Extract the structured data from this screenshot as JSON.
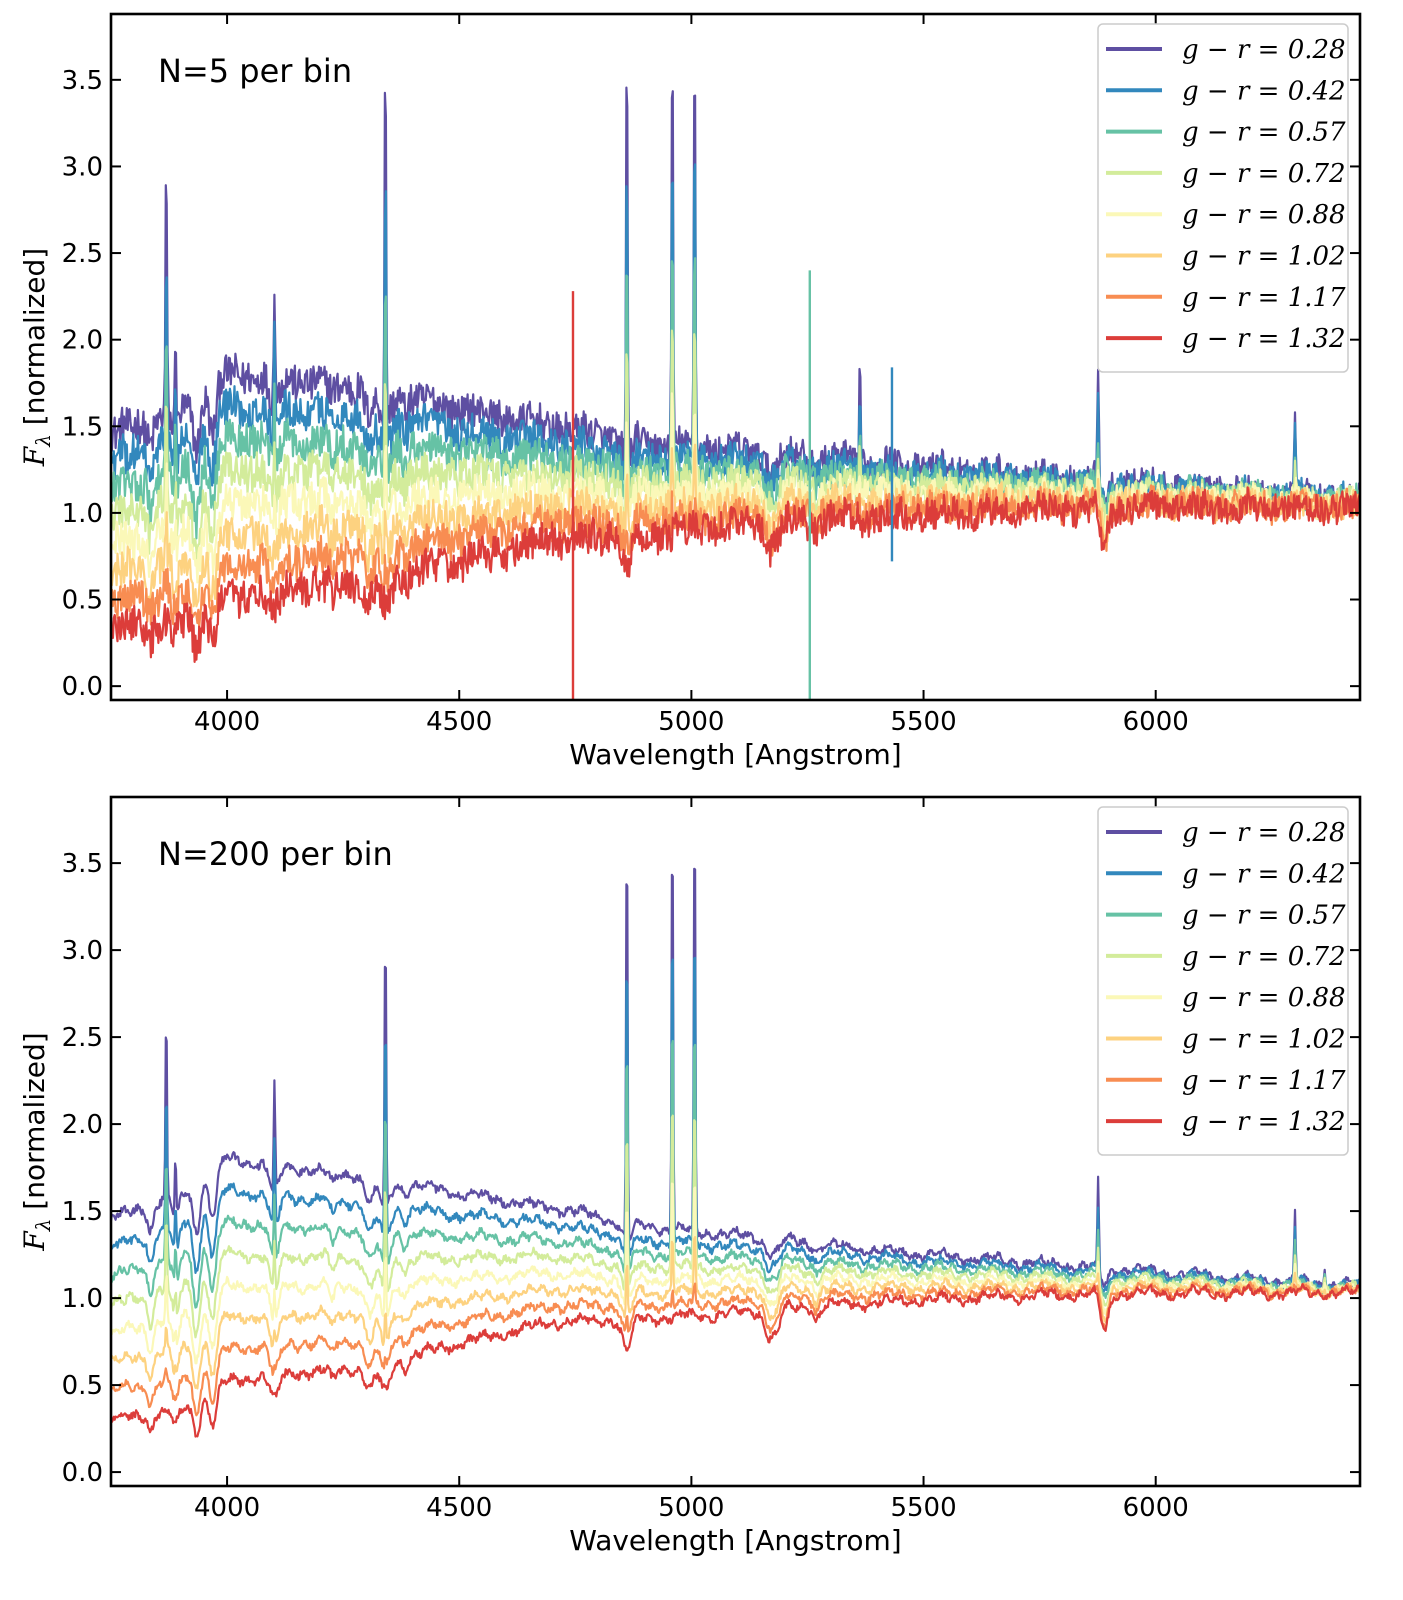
{
  "chart_data": [
    {
      "type": "line",
      "annotation": "N=5 per bin",
      "xlabel": "Wavelength [Angstrom]",
      "ylabel_main": "F",
      "ylabel_sub": "λ",
      "ylabel_rest": " [normalized]",
      "xlim": [
        3750,
        6440
      ],
      "ylim": [
        -0.08,
        3.88
      ],
      "xticks": [
        4000,
        4500,
        5000,
        5500,
        6000
      ],
      "xtick_labels": [
        "4000",
        "4500",
        "5000",
        "5500",
        "6000"
      ],
      "yticks": [
        0.0,
        0.5,
        1.0,
        1.5,
        2.0,
        2.5,
        3.0,
        3.5
      ],
      "ytick_labels": [
        "0.0",
        "0.5",
        "1.0",
        "1.5",
        "2.0",
        "2.5",
        "3.0",
        "3.5"
      ],
      "grid": false,
      "legend_position": "top-right",
      "noise": 0.1,
      "series": [
        {
          "name": "g − r = 0.28",
          "g_r": 0.28,
          "color": "#5e4fa2"
        },
        {
          "name": "g − r = 0.42",
          "g_r": 0.42,
          "color": "#3288bd"
        },
        {
          "name": "g − r = 0.57",
          "g_r": 0.57,
          "color": "#66c2a5"
        },
        {
          "name": "g − r = 0.72",
          "g_r": 0.72,
          "color": "#d3ec9b"
        },
        {
          "name": "g − r = 0.88",
          "g_r": 0.88,
          "color": "#fbf8b8"
        },
        {
          "name": "g − r = 1.02",
          "g_r": 1.02,
          "color": "#fdd280"
        },
        {
          "name": "g − r = 1.17",
          "g_r": 1.17,
          "color": "#f88d52"
        },
        {
          "name": "g − r = 1.32",
          "g_r": 1.32,
          "color": "#dc3d3a"
        }
      ],
      "continuum_anchors": {
        "x": [
          3750,
          3900,
          4000,
          4100,
          4300,
          4500,
          4700,
          4900,
          5100,
          5300,
          5500,
          5800,
          6000,
          6200,
          6440
        ],
        "g_r_0.28": [
          1.45,
          1.6,
          1.8,
          1.78,
          1.72,
          1.6,
          1.5,
          1.4,
          1.36,
          1.31,
          1.26,
          1.2,
          1.16,
          1.12,
          1.08
        ],
        "g_r_1.32": [
          0.33,
          0.38,
          0.5,
          0.55,
          0.6,
          0.72,
          0.85,
          0.88,
          0.92,
          0.96,
          0.99,
          1.02,
          1.03,
          1.03,
          1.03
        ]
      },
      "emission_lines": [
        {
          "x": 3869,
          "peak": 3.05
        },
        {
          "x": 3889,
          "peak": 2.27
        },
        {
          "x": 4102,
          "peak": 2.52
        },
        {
          "x": 4341,
          "peak": 3.9
        },
        {
          "x": 4861,
          "peak": 3.9
        },
        {
          "x": 4959,
          "peak": 3.9
        },
        {
          "x": 5007,
          "peak": 3.9
        },
        {
          "x": 5363,
          "peak": 1.9
        },
        {
          "x": 5876,
          "peak": 1.79
        },
        {
          "x": 6300,
          "peak": 1.56
        }
      ],
      "spikes": [
        {
          "x": 4745,
          "top": 2.28,
          "bottom": -0.08,
          "series": 7
        },
        {
          "x": 5255,
          "top": 2.4,
          "bottom": -0.08,
          "series": 2
        },
        {
          "x": 5432,
          "top": 1.84,
          "bottom": 0.72,
          "series": 1
        }
      ]
    },
    {
      "type": "line",
      "annotation": "N=200 per bin",
      "xlabel": "Wavelength [Angstrom]",
      "ylabel_main": "F",
      "ylabel_sub": "λ",
      "ylabel_rest": " [normalized]",
      "xlim": [
        3750,
        6440
      ],
      "ylim": [
        -0.08,
        3.88
      ],
      "xticks": [
        4000,
        4500,
        5000,
        5500,
        6000
      ],
      "xtick_labels": [
        "4000",
        "4500",
        "5000",
        "5500",
        "6000"
      ],
      "yticks": [
        0.0,
        0.5,
        1.0,
        1.5,
        2.0,
        2.5,
        3.0,
        3.5
      ],
      "ytick_labels": [
        "0.0",
        "0.5",
        "1.0",
        "1.5",
        "2.0",
        "2.5",
        "3.0",
        "3.5"
      ],
      "grid": false,
      "legend_position": "top-right",
      "noise": 0.02,
      "series": [
        {
          "name": "g − r = 0.28",
          "g_r": 0.28,
          "color": "#5e4fa2"
        },
        {
          "name": "g − r = 0.42",
          "g_r": 0.42,
          "color": "#3288bd"
        },
        {
          "name": "g − r = 0.57",
          "g_r": 0.57,
          "color": "#66c2a5"
        },
        {
          "name": "g − r = 0.72",
          "g_r": 0.72,
          "color": "#d3ec9b"
        },
        {
          "name": "g − r = 0.88",
          "g_r": 0.88,
          "color": "#fbf8b8"
        },
        {
          "name": "g − r = 1.02",
          "g_r": 1.02,
          "color": "#fdd280"
        },
        {
          "name": "g − r = 1.17",
          "g_r": 1.17,
          "color": "#f88d52"
        },
        {
          "name": "g − r = 1.32",
          "g_r": 1.32,
          "color": "#dc3d3a"
        }
      ],
      "continuum_anchors": {
        "x": [
          3750,
          3900,
          4000,
          4100,
          4300,
          4500,
          4700,
          4900,
          5100,
          5300,
          5500,
          5800,
          6000,
          6200,
          6440
        ],
        "g_r_0.28": [
          1.45,
          1.6,
          1.8,
          1.76,
          1.7,
          1.6,
          1.52,
          1.41,
          1.36,
          1.3,
          1.25,
          1.19,
          1.15,
          1.11,
          1.07
        ],
        "g_r_1.32": [
          0.3,
          0.36,
          0.52,
          0.56,
          0.6,
          0.74,
          0.86,
          0.88,
          0.91,
          0.96,
          0.99,
          1.02,
          1.03,
          1.03,
          1.03
        ]
      },
      "emission_lines": [
        {
          "x": 3869,
          "peak": 2.65
        },
        {
          "x": 3889,
          "peak": 1.97
        },
        {
          "x": 4102,
          "peak": 2.42
        },
        {
          "x": 4341,
          "peak": 3.36
        },
        {
          "x": 4861,
          "peak": 3.9
        },
        {
          "x": 4959,
          "peak": 3.9
        },
        {
          "x": 5007,
          "peak": 3.9
        },
        {
          "x": 5876,
          "peak": 1.68
        },
        {
          "x": 6300,
          "peak": 1.51
        },
        {
          "x": 6364,
          "peak": 1.21
        }
      ],
      "spikes": []
    }
  ]
}
